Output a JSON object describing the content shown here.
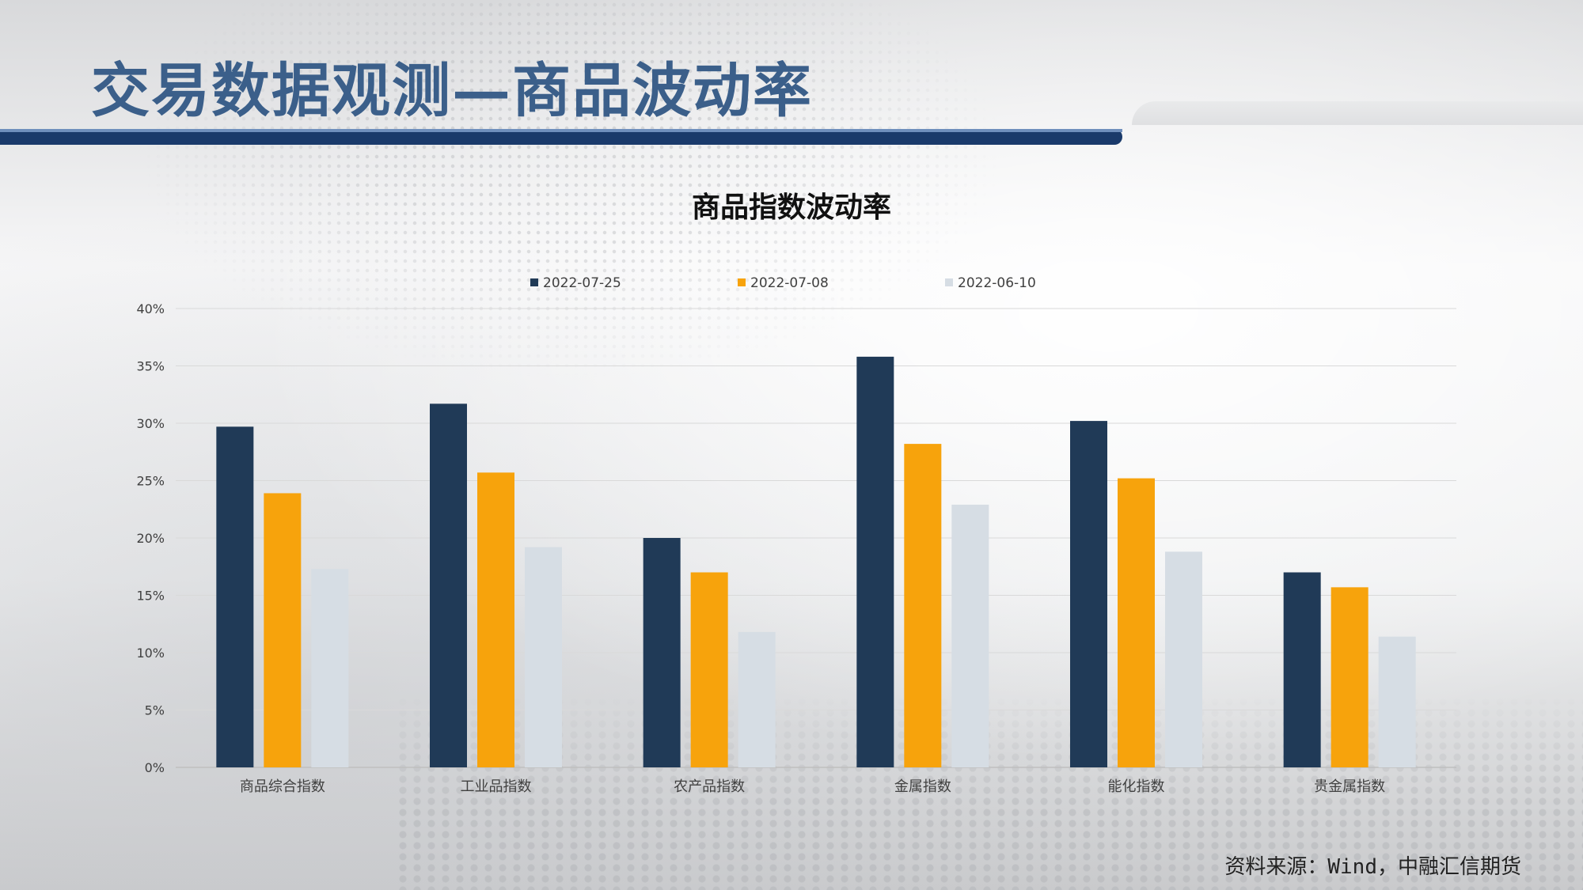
{
  "page": {
    "title": "交易数据观测—商品波动率",
    "source": "资料来源：Wind，中融汇信期货"
  },
  "colors": {
    "title": "#3b5f8a",
    "band": "#1a3a6b",
    "series": [
      "#203a57",
      "#f7a30c",
      "#d6dde4"
    ]
  },
  "chart_data": {
    "type": "bar",
    "title": "商品指数波动率",
    "categories": [
      "商品综合指数",
      "工业品指数",
      "农产品指数",
      "金属指数",
      "能化指数",
      "贵金属指数"
    ],
    "series": [
      {
        "name": "2022-07-25",
        "values": [
          29.7,
          31.7,
          20.0,
          35.8,
          30.2,
          17.0
        ]
      },
      {
        "name": "2022-07-08",
        "values": [
          23.9,
          25.7,
          17.0,
          28.2,
          25.2,
          15.7
        ]
      },
      {
        "name": "2022-06-10",
        "values": [
          17.3,
          19.2,
          11.8,
          22.9,
          18.8,
          11.4
        ]
      }
    ],
    "y_ticks": [
      "0%",
      "5%",
      "10%",
      "15%",
      "20%",
      "25%",
      "30%",
      "35%",
      "40%"
    ],
    "ylim": [
      0,
      40
    ],
    "y_unit": "%",
    "grid": true,
    "legend_position": "top"
  }
}
